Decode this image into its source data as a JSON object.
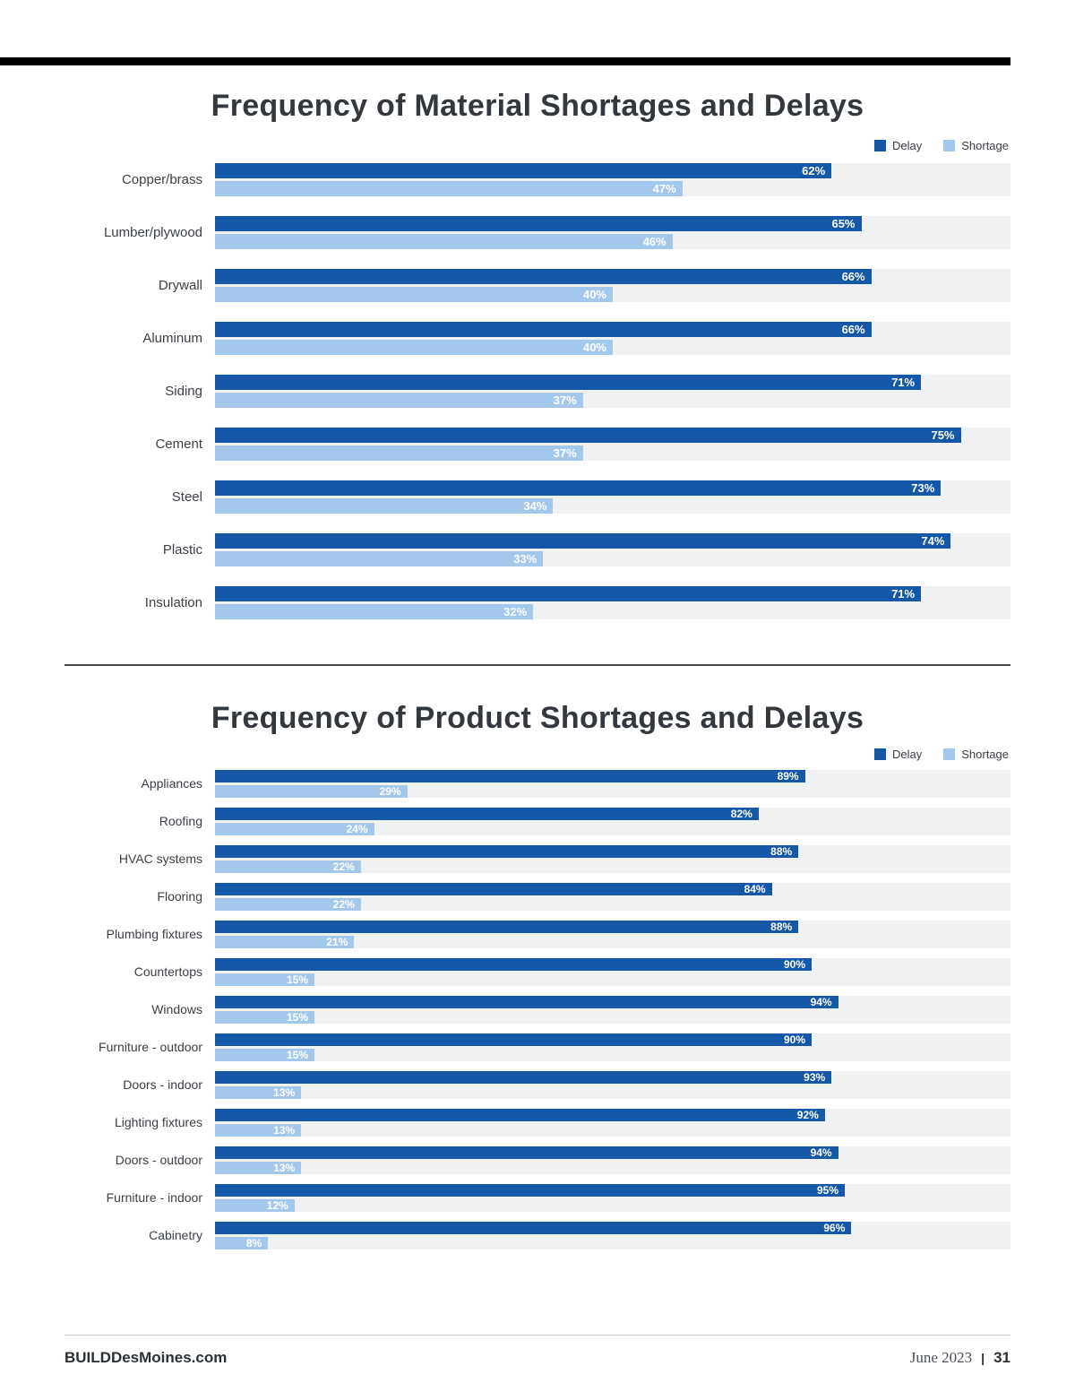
{
  "colors": {
    "delay": "#1558a7",
    "shortage": "#a4c8eb",
    "track": "#f0f1f2",
    "title_text": "#33383e"
  },
  "footer": {
    "site": "BUILDDesMoines.com",
    "date": "June 2023",
    "separator": "|",
    "page": "31"
  },
  "chart_data": [
    {
      "type": "bar",
      "orientation": "horizontal",
      "title": "Frequency of Material Shortages and Delays",
      "legend_position": "top-right",
      "grid": false,
      "xlim": [
        0,
        80
      ],
      "xlabel": "",
      "ylabel": "",
      "categories": [
        "Copper/brass",
        "Lumber/plywood",
        "Drywall",
        "Aluminum",
        "Siding",
        "Cement",
        "Steel",
        "Plastic",
        "Insulation"
      ],
      "series": [
        {
          "name": "Delay",
          "values": [
            62,
            65,
            66,
            66,
            71,
            75,
            73,
            74,
            71
          ]
        },
        {
          "name": "Shortage",
          "values": [
            47,
            46,
            40,
            40,
            37,
            37,
            34,
            33,
            32
          ]
        }
      ],
      "value_label_format": "{value}%"
    },
    {
      "type": "bar",
      "orientation": "horizontal",
      "title": "Frequency of Product Shortages and Delays",
      "legend_position": "top-right",
      "grid": false,
      "xlim": [
        0,
        120
      ],
      "xlabel": "",
      "ylabel": "",
      "categories": [
        "Appliances",
        "Roofing",
        "HVAC systems",
        "Flooring",
        "Plumbing fixtures",
        "Countertops",
        "Windows",
        "Furniture - outdoor",
        "Doors - indoor",
        "Lighting fixtures",
        "Doors - outdoor",
        "Furniture - indoor",
        "Cabinetry"
      ],
      "series": [
        {
          "name": "Delay",
          "values": [
            89,
            82,
            88,
            84,
            88,
            90,
            94,
            90,
            93,
            92,
            94,
            95,
            96
          ]
        },
        {
          "name": "Shortage",
          "values": [
            29,
            24,
            22,
            22,
            21,
            15,
            15,
            15,
            13,
            13,
            13,
            12,
            8
          ]
        }
      ],
      "value_label_format": "{value}%"
    }
  ]
}
